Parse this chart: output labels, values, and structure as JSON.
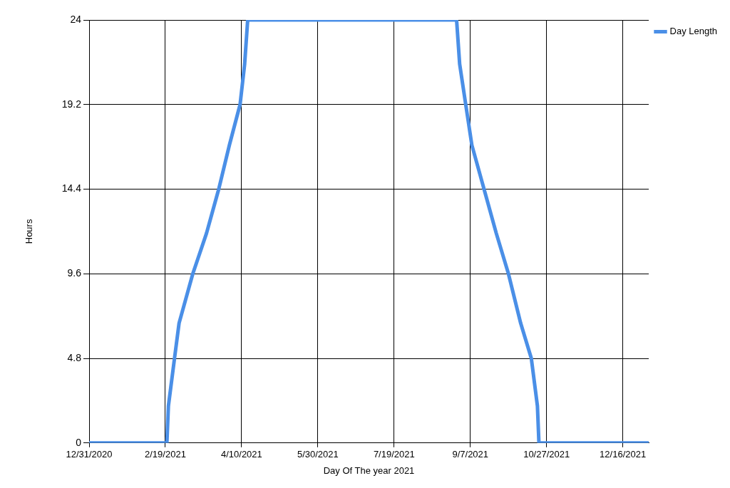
{
  "chart_data": {
    "type": "line",
    "xlabel": "Day Of The year 2021",
    "ylabel": "Hours",
    "x": [
      "2020-12-31",
      "2021-02-20",
      "2021-02-21",
      "2021-02-25",
      "2021-02-28",
      "2021-03-09",
      "2021-03-18",
      "2021-03-26",
      "2021-04-02",
      "2021-04-09",
      "2021-04-12",
      "2021-04-14",
      "2021-08-29",
      "2021-08-31",
      "2021-09-04",
      "2021-09-08",
      "2021-09-16",
      "2021-09-24",
      "2021-10-02",
      "2021-10-10",
      "2021-10-17",
      "2021-10-21",
      "2021-10-22",
      "2022-01-02"
    ],
    "series": [
      {
        "name": "Day Length",
        "color": "#4a8fe7",
        "values": [
          0,
          0,
          2.1,
          4.8,
          6.8,
          9.6,
          11.9,
          14.4,
          16.9,
          19.2,
          21.5,
          24,
          24,
          21.5,
          19.2,
          16.9,
          14.4,
          11.9,
          9.6,
          6.8,
          4.8,
          2.1,
          0,
          0
        ]
      }
    ],
    "xlim": [
      "2020-12-31",
      "2022-01-02"
    ],
    "xticks": [
      {
        "value": "2020-12-31",
        "label": "12/31/2020"
      },
      {
        "value": "2021-02-19",
        "label": "2/19/2021"
      },
      {
        "value": "2021-04-10",
        "label": "4/10/2021"
      },
      {
        "value": "2021-05-30",
        "label": "5/30/2021"
      },
      {
        "value": "2021-07-19",
        "label": "7/19/2021"
      },
      {
        "value": "2021-09-07",
        "label": "9/7/2021"
      },
      {
        "value": "2021-10-27",
        "label": "10/27/2021"
      },
      {
        "value": "2021-12-16",
        "label": "12/16/2021"
      }
    ],
    "ylim": [
      0,
      24
    ],
    "yticks": [
      0,
      4.8,
      9.6,
      14.4,
      19.2,
      24
    ],
    "grid": true,
    "legend": "top right",
    "marker": "none",
    "line_style": "solid"
  }
}
